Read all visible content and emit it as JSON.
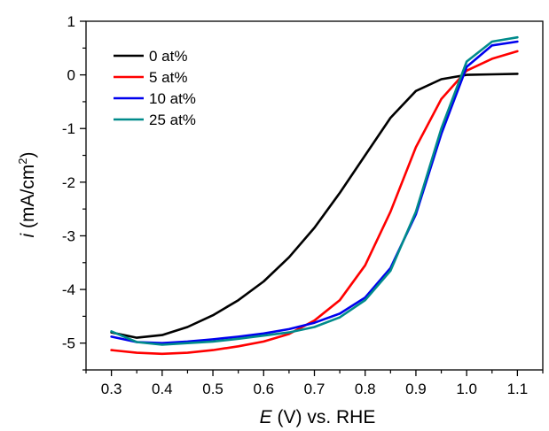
{
  "chart_data": {
    "type": "line",
    "title": "",
    "xlabel": {
      "var": "E",
      "rest": " (V) vs. RHE"
    },
    "ylabel": {
      "var": "i",
      "rest": " (mA/cm",
      "sup": "2",
      "close": ")"
    },
    "xlim": [
      0.25,
      1.15
    ],
    "ylim": [
      -5.5,
      1.0
    ],
    "xticks": [
      "0.3",
      "0.4",
      "0.5",
      "0.6",
      "0.7",
      "0.8",
      "0.9",
      "1.0",
      "1.1"
    ],
    "yticks": [
      "1",
      "0",
      "-1",
      "-2",
      "-3",
      "-4",
      "-5"
    ],
    "grid": false,
    "legend_position": "top-left",
    "series": [
      {
        "name": "0 at%",
        "color": "#000000",
        "x": [
          0.3,
          0.35,
          0.4,
          0.45,
          0.5,
          0.55,
          0.6,
          0.65,
          0.7,
          0.75,
          0.8,
          0.85,
          0.9,
          0.95,
          1.0,
          1.05,
          1.1
        ],
        "y": [
          -4.8,
          -4.9,
          -4.85,
          -4.7,
          -4.48,
          -4.2,
          -3.85,
          -3.4,
          -2.85,
          -2.2,
          -1.5,
          -0.8,
          -0.3,
          -0.08,
          0.0,
          0.01,
          0.02
        ]
      },
      {
        "name": "5 at%",
        "color": "#ff0000",
        "x": [
          0.3,
          0.35,
          0.4,
          0.45,
          0.5,
          0.55,
          0.6,
          0.65,
          0.7,
          0.75,
          0.8,
          0.85,
          0.9,
          0.95,
          1.0,
          1.05,
          1.1
        ],
        "y": [
          -5.13,
          -5.18,
          -5.2,
          -5.18,
          -5.13,
          -5.06,
          -4.97,
          -4.83,
          -4.58,
          -4.2,
          -3.55,
          -2.55,
          -1.35,
          -0.45,
          0.08,
          0.3,
          0.44
        ]
      },
      {
        "name": "10 at%",
        "color": "#0000ee",
        "x": [
          0.3,
          0.35,
          0.4,
          0.45,
          0.5,
          0.55,
          0.6,
          0.65,
          0.7,
          0.75,
          0.8,
          0.85,
          0.9,
          0.95,
          1.0,
          1.05,
          1.1
        ],
        "y": [
          -4.88,
          -4.98,
          -5.0,
          -4.97,
          -4.93,
          -4.88,
          -4.82,
          -4.74,
          -4.62,
          -4.45,
          -4.15,
          -3.6,
          -2.6,
          -1.1,
          0.15,
          0.55,
          0.62
        ]
      },
      {
        "name": "25 at%",
        "color": "#008b8b",
        "x": [
          0.3,
          0.35,
          0.4,
          0.45,
          0.5,
          0.55,
          0.6,
          0.65,
          0.7,
          0.75,
          0.8,
          0.85,
          0.9,
          0.95,
          1.0,
          1.05,
          1.1
        ],
        "y": [
          -4.78,
          -4.98,
          -5.03,
          -5.0,
          -4.97,
          -4.92,
          -4.86,
          -4.8,
          -4.7,
          -4.52,
          -4.2,
          -3.65,
          -2.55,
          -1.0,
          0.25,
          0.62,
          0.7
        ]
      }
    ]
  }
}
